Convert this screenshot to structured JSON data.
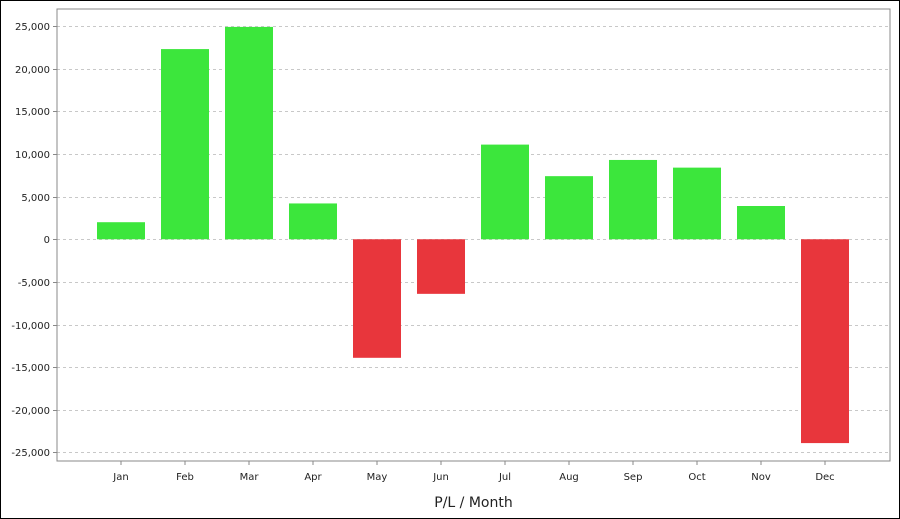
{
  "chart_data": {
    "type": "bar",
    "title": "",
    "xlabel": "P/L / Month",
    "ylabel": "",
    "categories": [
      "Jan",
      "Feb",
      "Mar",
      "Apr",
      "May",
      "Jun",
      "Jul",
      "Aug",
      "Sep",
      "Oct",
      "Nov",
      "Dec"
    ],
    "values": [
      2000,
      22300,
      24900,
      4200,
      -13900,
      -6400,
      11100,
      7400,
      9300,
      8400,
      3900,
      -23900
    ],
    "ylim": [
      -26000,
      27000
    ],
    "yticks": [
      25000,
      20000,
      15000,
      10000,
      5000,
      0,
      -5000,
      -10000,
      -15000,
      -20000,
      -25000
    ],
    "ytick_labels": [
      "25,000",
      "20,000",
      "15,000",
      "10,000",
      "5,000",
      "0",
      "-5,000",
      "-10,000",
      "-15,000",
      "-20,000",
      "-25,000"
    ],
    "grid": true,
    "positive_color": "#3ce63c",
    "negative_color": "#e8363c",
    "grid_color": "#c8c8c8",
    "axis_color": "#888888"
  }
}
